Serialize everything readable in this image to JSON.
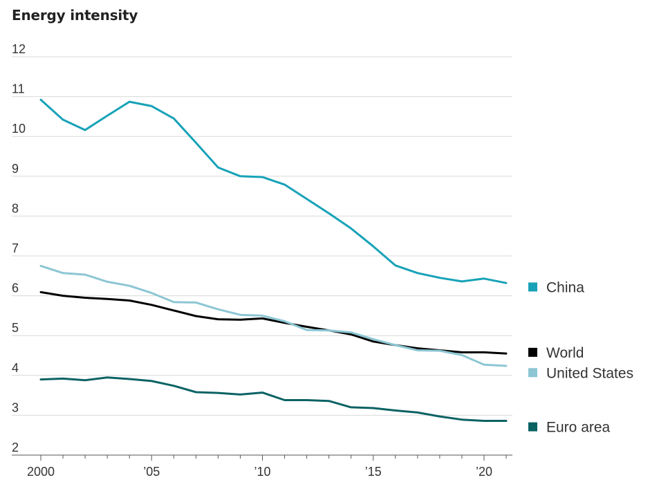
{
  "chart_data": {
    "type": "line",
    "title": "Energy intensity",
    "xlabel": "",
    "ylabel": "",
    "ylim": [
      2,
      12
    ],
    "yticks": [
      2,
      3,
      4,
      5,
      6,
      7,
      8,
      9,
      10,
      11,
      12
    ],
    "xlim": [
      2000,
      2021
    ],
    "xticks": [
      {
        "value": 2000,
        "label": "2000"
      },
      {
        "value": 2005,
        "label": "’05"
      },
      {
        "value": 2010,
        "label": "’10"
      },
      {
        "value": 2015,
        "label": "’15"
      },
      {
        "value": 2020,
        "label": "’20"
      }
    ],
    "grid": true,
    "legend_placement": "right, at line ends",
    "x": [
      2000,
      2001,
      2002,
      2003,
      2004,
      2005,
      2006,
      2007,
      2008,
      2009,
      2010,
      2011,
      2012,
      2013,
      2014,
      2015,
      2016,
      2017,
      2018,
      2019,
      2020,
      2021
    ],
    "series": [
      {
        "name": "China",
        "color": "#17a2b8",
        "values": [
          10.92,
          10.42,
          10.16,
          10.52,
          10.87,
          10.76,
          10.45,
          9.84,
          9.22,
          9.0,
          8.98,
          8.79,
          8.43,
          8.07,
          7.69,
          7.24,
          6.76,
          6.57,
          6.45,
          6.36,
          6.43,
          6.32
        ]
      },
      {
        "name": "World",
        "color": "#000000",
        "values": [
          6.09,
          6.0,
          5.95,
          5.92,
          5.88,
          5.77,
          5.63,
          5.49,
          5.41,
          5.4,
          5.43,
          5.32,
          5.22,
          5.13,
          5.03,
          4.85,
          4.76,
          4.68,
          4.63,
          4.58,
          4.58,
          4.55
        ]
      },
      {
        "name": "United States",
        "color": "#8cc6d4",
        "values": [
          6.75,
          6.57,
          6.53,
          6.35,
          6.25,
          6.07,
          5.84,
          5.83,
          5.66,
          5.52,
          5.5,
          5.36,
          5.14,
          5.13,
          5.08,
          4.91,
          4.76,
          4.63,
          4.62,
          4.51,
          4.27,
          4.24
        ]
      },
      {
        "name": "Euro area",
        "color": "#0b6263",
        "values": [
          3.9,
          3.92,
          3.88,
          3.95,
          3.91,
          3.86,
          3.74,
          3.58,
          3.56,
          3.52,
          3.57,
          3.38,
          3.38,
          3.36,
          3.2,
          3.18,
          3.12,
          3.07,
          2.97,
          2.89,
          2.86,
          2.86
        ]
      }
    ],
    "legend": [
      {
        "name": "China",
        "color": "#17a2b8",
        "anchor_value": 6.22
      },
      {
        "name": "World",
        "color": "#000000",
        "anchor_value": 4.58
      },
      {
        "name": "United States",
        "color": "#8cc6d4",
        "anchor_value": 4.07
      },
      {
        "name": "Euro area",
        "color": "#0b6263",
        "anchor_value": 2.71
      }
    ]
  }
}
